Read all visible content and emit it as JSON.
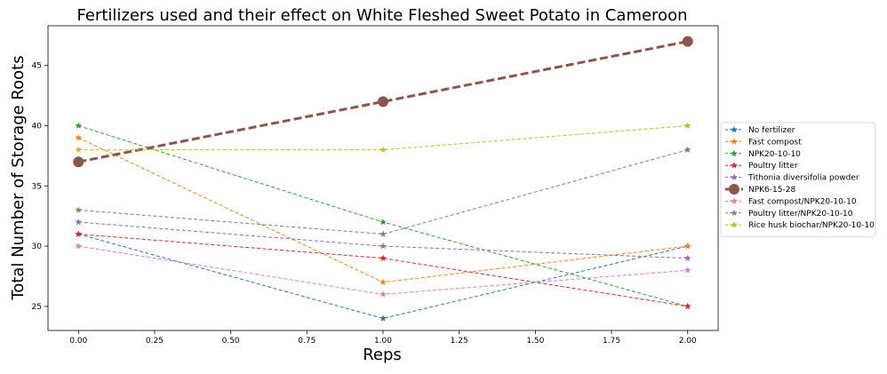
{
  "chart_data": {
    "type": "line",
    "title": "Fertilizers used and their effect on White Fleshed Sweet Potato in Cameroon",
    "xlabel": "Reps",
    "ylabel": "Total Number of Storage Roots",
    "xlim": [
      -0.1,
      2.1
    ],
    "ylim": [
      23,
      48.3
    ],
    "x_ticks": [
      0.0,
      0.25,
      0.5,
      0.75,
      1.0,
      1.25,
      1.5,
      1.75,
      2.0
    ],
    "x_tick_labels": [
      "0.00",
      "0.25",
      "0.50",
      "0.75",
      "1.00",
      "1.25",
      "1.50",
      "1.75",
      "2.00"
    ],
    "y_ticks": [
      25,
      30,
      35,
      40,
      45
    ],
    "y_tick_labels": [
      "25",
      "30",
      "35",
      "40",
      "45"
    ],
    "grid": false,
    "legend_position": "right",
    "x": [
      0,
      1,
      2
    ],
    "series": [
      {
        "name": "No fertilizer",
        "values": [
          31,
          24,
          30
        ],
        "color": "#1f77b4",
        "marker": "star",
        "linewidth": 1
      },
      {
        "name": "Fast compost",
        "values": [
          39,
          27,
          30
        ],
        "color": "#ff7f0e",
        "marker": "star",
        "linewidth": 1
      },
      {
        "name": "NPK20-10-10",
        "values": [
          40,
          32,
          25
        ],
        "color": "#2ca02c",
        "marker": "star",
        "linewidth": 1
      },
      {
        "name": "Poultry litter",
        "values": [
          31,
          29,
          25
        ],
        "color": "#d62728",
        "marker": "star",
        "linewidth": 1
      },
      {
        "name": "Tithonia diversifolia powder",
        "values": [
          32,
          30,
          29
        ],
        "color": "#9467bd",
        "marker": "star",
        "linewidth": 1
      },
      {
        "name": "NPK6-15-28",
        "values": [
          37,
          42,
          47
        ],
        "color": "#8c564b",
        "marker": "circle",
        "linewidth": 3
      },
      {
        "name": "Fast compost/NPK20-10-10",
        "values": [
          30,
          26,
          28
        ],
        "color": "#e377c2",
        "marker": "star",
        "linewidth": 1
      },
      {
        "name": "Poultry litter/NPK20-10-10",
        "values": [
          33,
          31,
          38
        ],
        "color": "#7f7f7f",
        "marker": "star",
        "linewidth": 1
      },
      {
        "name": "Rice husk biochar/NPK20-10-10",
        "values": [
          38,
          38,
          40
        ],
        "color": "#bcbd22",
        "marker": "star",
        "linewidth": 1
      }
    ]
  }
}
